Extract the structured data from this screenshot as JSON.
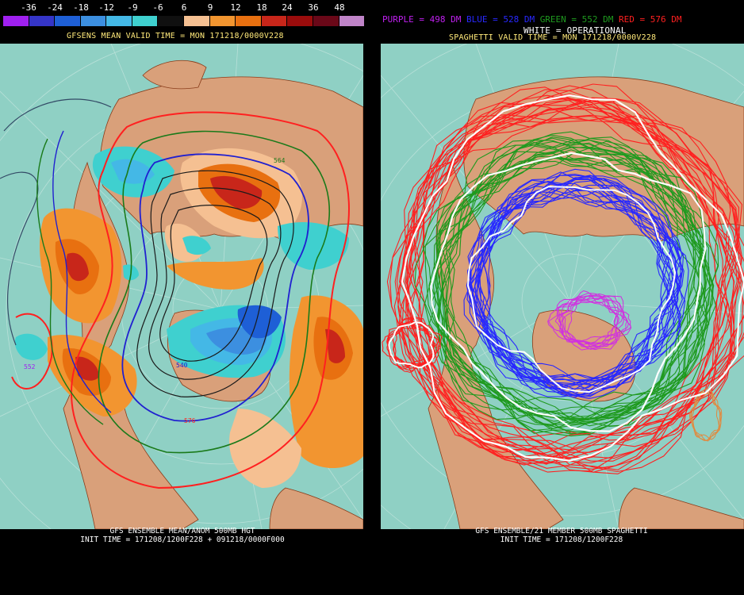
{
  "legend": {
    "ticks": [
      "-36",
      "-24",
      "-18",
      "-12",
      "-9",
      "-6",
      "6",
      "9",
      "12",
      "18",
      "24",
      "36",
      "48"
    ],
    "colors": [
      "#a020f0",
      "#3535c8",
      "#1e5fd6",
      "#3c8fe0",
      "#44b8e6",
      "#3fd0cf",
      "#101010",
      "#f5c092",
      "#f29530",
      "#e87010",
      "#c8261a",
      "#9a0c0c",
      "#6a0818",
      "#c084c8"
    ]
  },
  "left_panel": {
    "title": "GFSENS MEAN VALID TIME = MON 171218/0000V228",
    "caption_line1": "GFS ENSEMBLE MEAN/ANOM 500MB HGT",
    "caption_line2": "INIT TIME = 171208/1200F228 + 091218/0000F000",
    "contour_labels": [
      "576",
      "564",
      "552",
      "540"
    ]
  },
  "right_panel": {
    "header": [
      {
        "text": "PURPLE = 498 DM",
        "color": "#c020f0"
      },
      {
        "text": "BLUE = 528 DM",
        "color": "#2828ff"
      },
      {
        "text": "GREEN = 552 DM",
        "color": "#1f9a1f"
      },
      {
        "text": "RED = 576 DM",
        "color": "#ff2020"
      }
    ],
    "subheader": "WHITE = OPERATIONAL",
    "title": "SPAGHETTI VALID TIME = MON 171218/0000V228",
    "caption_line1": "GFS ENSEMBLE/21 MEMBER 500MB SPAGHETTI",
    "caption_line2": "INIT TIME = 171208/1200F228"
  },
  "colors": {
    "ocean": "#8fd0c4",
    "land": "#d9a07a",
    "coast": "#8a3c1a",
    "grid": "#b8e0d8"
  }
}
